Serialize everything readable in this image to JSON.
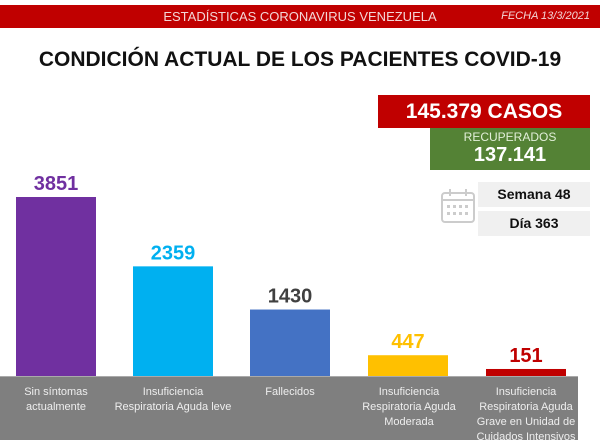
{
  "header": {
    "title": "ESTADÍSTICAS CORONAVIRUS VENEZUELA",
    "date": "FECHA 13/3/2021"
  },
  "summary": {
    "cases": "145.379 CASOS",
    "recovered_label": "RECUPERADOS",
    "recovered": "137.141",
    "week": "Semana 48",
    "day": "Día 363"
  },
  "chart_data": {
    "type": "bar",
    "title": "CONDICIÓN ACTUAL DE LOS PACIENTES COVID-19",
    "categories": [
      "Sin síntomas actualmente",
      "Insuficiencia Respiratoria Aguda leve",
      "Fallecidos",
      "Insuficiencia Respiratoria Aguda Moderada",
      "Insuficiencia Respiratoria Aguda Grave en Unidad de Cuidados Intensivos"
    ],
    "values": [
      3851,
      2359,
      1430,
      447,
      151
    ],
    "value_labels": [
      "3851",
      "2359",
      "1430",
      "447",
      "151"
    ],
    "colors": [
      "#7030a0",
      "#00b0f0",
      "#4472c4",
      "#ffc000",
      "#c00000"
    ],
    "label_colors": [
      "#7030a0",
      "#00b0f0",
      "#404040",
      "#ffc000",
      "#c00000"
    ],
    "grid": false
  }
}
